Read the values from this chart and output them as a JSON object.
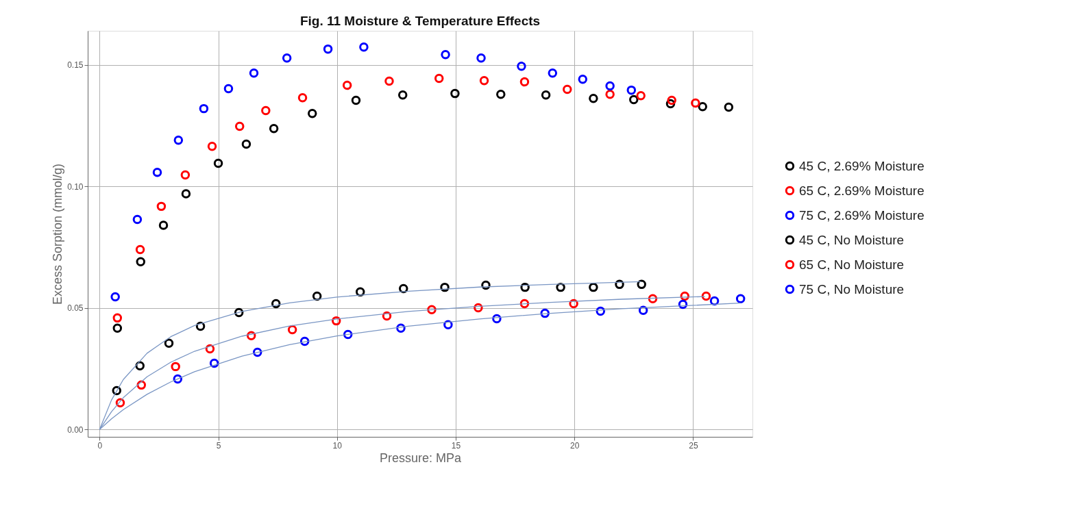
{
  "chart_data": {
    "type": "scatter",
    "title": "Fig. 11 Moisture & Temperature Effects",
    "xlabel": "Pressure:  MPa",
    "ylabel": "Excess Sorption (mmol/g)",
    "xlim": [
      -0.5,
      27.5
    ],
    "ylim": [
      -0.003,
      0.164
    ],
    "xticks": [
      0,
      5,
      10,
      15,
      20,
      25
    ],
    "yticks": [
      {
        "value": 0,
        "label": "0.00"
      },
      {
        "value": 0.05,
        "label": "0.05"
      },
      {
        "value": 0.1,
        "label": "0.10"
      },
      {
        "value": 0.15,
        "label": "0.15"
      }
    ],
    "grid": true,
    "legend": "right",
    "marker": "circle",
    "series": [
      {
        "name": "45 C, 2.69% Moisture",
        "color": "#000000",
        "x": [
          0.75,
          1.73,
          2.69,
          3.64,
          5.0,
          6.18,
          7.34,
          8.96,
          10.8,
          12.77,
          14.97,
          16.9,
          18.8,
          20.8,
          22.5,
          24.05,
          25.4,
          26.5
        ],
        "values": [
          0.0417,
          0.069,
          0.084,
          0.097,
          0.1095,
          0.1174,
          0.1238,
          0.13,
          0.1354,
          0.1376,
          0.1382,
          0.1379,
          0.1376,
          0.1362,
          0.1357,
          0.134,
          0.1328,
          0.1326
        ]
      },
      {
        "name": "65 C, 2.69% Moisture",
        "color": "#ff0000",
        "x": [
          0.75,
          1.71,
          2.6,
          3.61,
          4.74,
          5.9,
          7.0,
          8.55,
          10.43,
          12.2,
          14.3,
          16.2,
          17.9,
          19.7,
          21.5,
          22.8,
          24.1,
          25.1
        ],
        "values": [
          0.0459,
          0.074,
          0.0918,
          0.1047,
          0.1165,
          0.1247,
          0.1312,
          0.1365,
          0.1416,
          0.1433,
          0.1444,
          0.1435,
          0.143,
          0.1399,
          0.1379,
          0.1373,
          0.1354,
          0.1343
        ]
      },
      {
        "name": "75 C, 2.69%  Moisture",
        "color": "#0000ff",
        "x": [
          0.66,
          1.59,
          2.43,
          3.32,
          4.39,
          5.43,
          6.5,
          7.89,
          9.62,
          11.13,
          14.57,
          16.07,
          17.77,
          19.08,
          20.35,
          21.5,
          22.4
        ],
        "values": [
          0.0546,
          0.0864,
          0.1058,
          0.119,
          0.132,
          0.1402,
          0.1466,
          0.1528,
          0.1565,
          0.1573,
          0.1542,
          0.1528,
          0.1494,
          0.1466,
          0.1441,
          0.1413,
          0.1396
        ]
      },
      {
        "name": "45 C, No Moisture",
        "color": "#000000",
        "x": [
          0.72,
          1.7,
          2.92,
          4.25,
          5.87,
          7.43,
          9.16,
          10.98,
          12.8,
          14.54,
          16.27,
          17.92,
          19.42,
          20.8,
          21.9,
          22.83
        ],
        "values": [
          0.016,
          0.0262,
          0.0355,
          0.0425,
          0.0481,
          0.0518,
          0.0549,
          0.0566,
          0.058,
          0.0585,
          0.0594,
          0.0585,
          0.0585,
          0.0585,
          0.0597,
          0.0597
        ]
      },
      {
        "name": "65 C, No Moisture",
        "color": "#ff0000",
        "x": [
          0.87,
          1.76,
          3.2,
          4.65,
          6.39,
          8.12,
          9.97,
          12.1,
          13.99,
          15.95,
          17.9,
          19.97,
          23.3,
          24.65,
          25.55
        ],
        "values": [
          0.011,
          0.0183,
          0.0259,
          0.0332,
          0.0386,
          0.0411,
          0.0447,
          0.0467,
          0.0493,
          0.0501,
          0.0518,
          0.0518,
          0.0538,
          0.0549,
          0.0549
        ]
      },
      {
        "name": "75 C, No  Moisture",
        "color": "#0000ff",
        "x": [
          3.29,
          4.83,
          6.65,
          8.64,
          10.46,
          12.69,
          14.68,
          16.73,
          18.76,
          21.1,
          22.9,
          24.57,
          25.9,
          27.0
        ],
        "values": [
          0.0208,
          0.0273,
          0.0318,
          0.0363,
          0.0391,
          0.0417,
          0.0431,
          0.0456,
          0.0478,
          0.0487,
          0.049,
          0.0515,
          0.0529,
          0.0538
        ]
      },
      {
        "type": "line",
        "marker": "none",
        "line_style": "solid",
        "color": "#7a96c4",
        "x": [
          0,
          0.5,
          1,
          2,
          3,
          4,
          6,
          8,
          10,
          13,
          16,
          19,
          22.8
        ],
        "values": [
          0,
          0.0121,
          0.0206,
          0.0314,
          0.0382,
          0.0428,
          0.0486,
          0.0521,
          0.0545,
          0.0569,
          0.0586,
          0.0597,
          0.0608
        ]
      },
      {
        "type": "line",
        "marker": "none",
        "line_style": "solid",
        "color": "#7a96c4",
        "x": [
          0,
          0.5,
          1,
          2,
          3,
          4,
          6,
          8,
          10,
          13,
          16,
          19,
          22,
          25.5
        ],
        "values": [
          0,
          0.0073,
          0.0131,
          0.0217,
          0.0277,
          0.0322,
          0.0384,
          0.0426,
          0.0455,
          0.0486,
          0.0507,
          0.0523,
          0.0536,
          0.0547
        ]
      },
      {
        "type": "line",
        "marker": "none",
        "line_style": "solid",
        "color": "#7a96c4",
        "x": [
          0,
          0.5,
          1,
          2,
          3,
          4,
          6,
          8,
          10,
          13,
          16,
          19,
          22,
          27
        ],
        "values": [
          0,
          0.0044,
          0.0082,
          0.0145,
          0.0196,
          0.0238,
          0.0302,
          0.0349,
          0.0385,
          0.0425,
          0.0455,
          0.0478,
          0.0497,
          0.052
        ]
      }
    ]
  }
}
